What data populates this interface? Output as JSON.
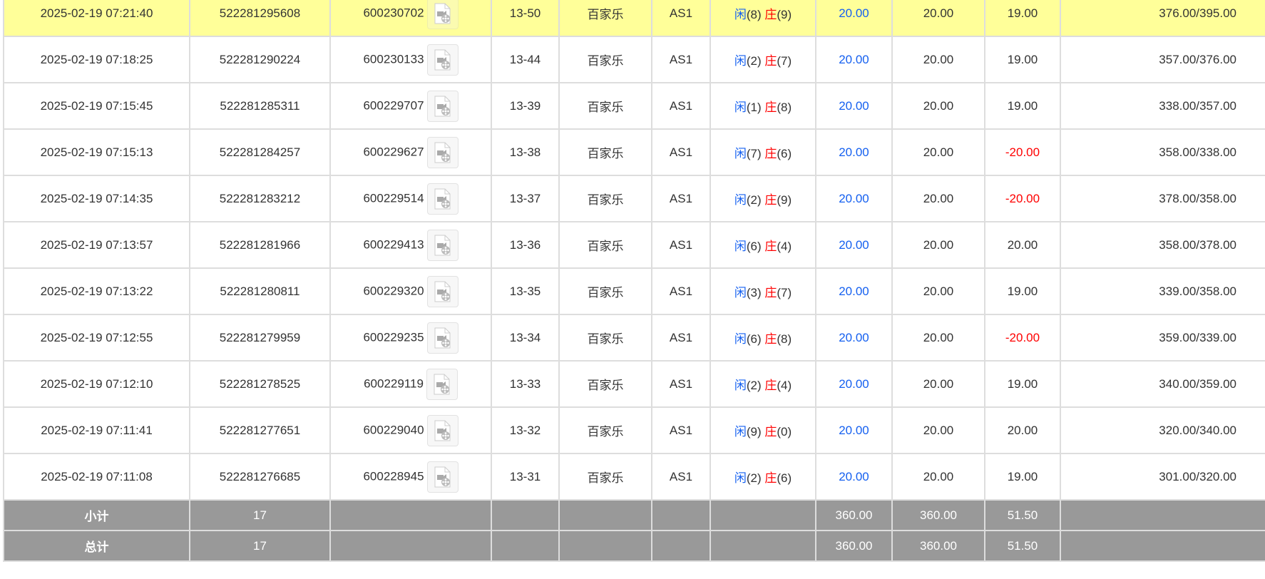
{
  "colors": {
    "highlight": "#ffff99",
    "player": "#1560f0",
    "banker": "#ff0000",
    "summary_bg": "#999999"
  },
  "labels": {
    "player": "闲",
    "banker": "庄"
  },
  "rows": [
    {
      "time": "2025-02-19 07:21:40",
      "order": "522281295608",
      "round": "600230702",
      "shoe": "13-50",
      "game": "百家乐",
      "table": "AS1",
      "p": "(8)",
      "b": "(9)",
      "bet": "20.00",
      "valid": "20.00",
      "win": "19.00",
      "win_neg": false,
      "balance": "376.00/395.00",
      "highlight": true
    },
    {
      "time": "2025-02-19 07:18:25",
      "order": "522281290224",
      "round": "600230133",
      "shoe": "13-44",
      "game": "百家乐",
      "table": "AS1",
      "p": "(2)",
      "b": "(7)",
      "bet": "20.00",
      "valid": "20.00",
      "win": "19.00",
      "win_neg": false,
      "balance": "357.00/376.00"
    },
    {
      "time": "2025-02-19 07:15:45",
      "order": "522281285311",
      "round": "600229707",
      "shoe": "13-39",
      "game": "百家乐",
      "table": "AS1",
      "p": "(1)",
      "b": "(8)",
      "bet": "20.00",
      "valid": "20.00",
      "win": "19.00",
      "win_neg": false,
      "balance": "338.00/357.00"
    },
    {
      "time": "2025-02-19 07:15:13",
      "order": "522281284257",
      "round": "600229627",
      "shoe": "13-38",
      "game": "百家乐",
      "table": "AS1",
      "p": "(7)",
      "b": "(6)",
      "bet": "20.00",
      "valid": "20.00",
      "win": "-20.00",
      "win_neg": true,
      "balance": "358.00/338.00"
    },
    {
      "time": "2025-02-19 07:14:35",
      "order": "522281283212",
      "round": "600229514",
      "shoe": "13-37",
      "game": "百家乐",
      "table": "AS1",
      "p": "(2)",
      "b": "(9)",
      "bet": "20.00",
      "valid": "20.00",
      "win": "-20.00",
      "win_neg": true,
      "balance": "378.00/358.00"
    },
    {
      "time": "2025-02-19 07:13:57",
      "order": "522281281966",
      "round": "600229413",
      "shoe": "13-36",
      "game": "百家乐",
      "table": "AS1",
      "p": "(6)",
      "b": "(4)",
      "bet": "20.00",
      "valid": "20.00",
      "win": "20.00",
      "win_neg": false,
      "balance": "358.00/378.00"
    },
    {
      "time": "2025-02-19 07:13:22",
      "order": "522281280811",
      "round": "600229320",
      "shoe": "13-35",
      "game": "百家乐",
      "table": "AS1",
      "p": "(3)",
      "b": "(7)",
      "bet": "20.00",
      "valid": "20.00",
      "win": "19.00",
      "win_neg": false,
      "balance": "339.00/358.00"
    },
    {
      "time": "2025-02-19 07:12:55",
      "order": "522281279959",
      "round": "600229235",
      "shoe": "13-34",
      "game": "百家乐",
      "table": "AS1",
      "p": "(6)",
      "b": "(8)",
      "bet": "20.00",
      "valid": "20.00",
      "win": "-20.00",
      "win_neg": true,
      "balance": "359.00/339.00"
    },
    {
      "time": "2025-02-19 07:12:10",
      "order": "522281278525",
      "round": "600229119",
      "shoe": "13-33",
      "game": "百家乐",
      "table": "AS1",
      "p": "(2)",
      "b": "(4)",
      "bet": "20.00",
      "valid": "20.00",
      "win": "19.00",
      "win_neg": false,
      "balance": "340.00/359.00"
    },
    {
      "time": "2025-02-19 07:11:41",
      "order": "522281277651",
      "round": "600229040",
      "shoe": "13-32",
      "game": "百家乐",
      "table": "AS1",
      "p": "(9)",
      "b": "(0)",
      "bet": "20.00",
      "valid": "20.00",
      "win": "20.00",
      "win_neg": false,
      "balance": "320.00/340.00"
    },
    {
      "time": "2025-02-19 07:11:08",
      "order": "522281276685",
      "round": "600228945",
      "shoe": "13-31",
      "game": "百家乐",
      "table": "AS1",
      "p": "(2)",
      "b": "(6)",
      "bet": "20.00",
      "valid": "20.00",
      "win": "19.00",
      "win_neg": false,
      "balance": "301.00/320.00"
    }
  ],
  "summary": [
    {
      "label": "小计",
      "count": "17",
      "bet": "360.00",
      "valid": "360.00",
      "win": "51.50"
    },
    {
      "label": "总计",
      "count": "17",
      "bet": "360.00",
      "valid": "360.00",
      "win": "51.50"
    }
  ]
}
